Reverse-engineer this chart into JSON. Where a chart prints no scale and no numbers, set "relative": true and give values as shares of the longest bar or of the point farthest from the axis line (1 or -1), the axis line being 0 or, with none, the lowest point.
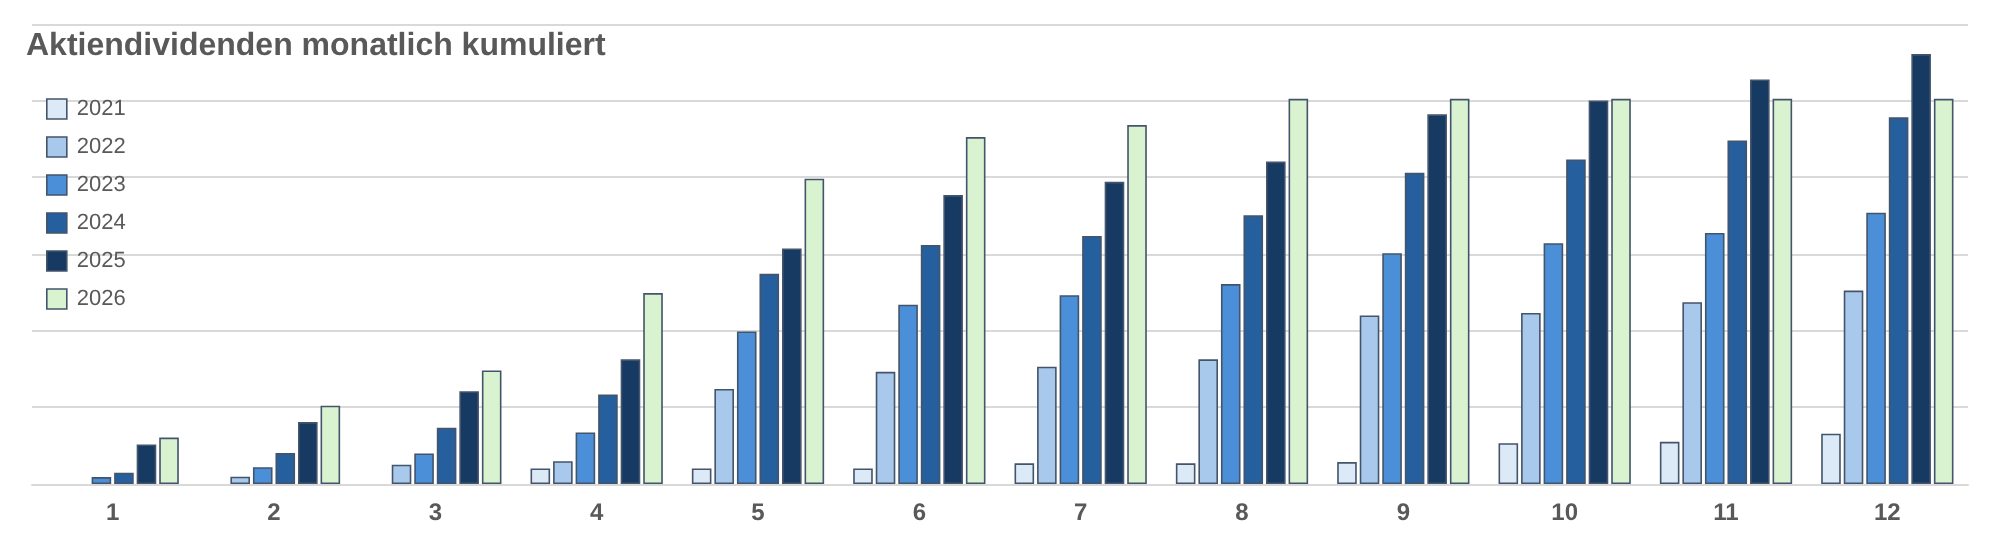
{
  "chart_data": {
    "type": "bar",
    "title": "Aktiendividenden monatlich kumuliert",
    "relative": true,
    "grid": "y",
    "legend": "top left",
    "categories": [
      "1",
      "2",
      "3",
      "4",
      "5",
      "6",
      "7",
      "8",
      "9",
      "10",
      "11",
      "12"
    ],
    "series": [
      {
        "name": "2021",
        "color": "#dce9f7",
        "values": [
          null,
          null,
          null,
          0.036,
          0.036,
          0.036,
          0.048,
          0.048,
          0.051,
          0.095,
          0.098,
          0.117
        ]
      },
      {
        "name": "2022",
        "color": "#a9c9ec",
        "values": [
          null,
          0.017,
          0.045,
          0.053,
          0.221,
          0.261,
          0.273,
          0.29,
          0.392,
          0.398,
          0.423,
          0.45
        ]
      },
      {
        "name": "2023",
        "color": "#4a8fd8",
        "values": [
          0.016,
          0.039,
          0.071,
          0.12,
          0.355,
          0.417,
          0.439,
          0.465,
          0.537,
          0.56,
          0.584,
          0.631
        ]
      },
      {
        "name": "2024",
        "color": "#255f9e",
        "values": [
          0.026,
          0.072,
          0.131,
          0.208,
          0.489,
          0.556,
          0.577,
          0.625,
          0.724,
          0.755,
          0.799,
          0.853
        ]
      },
      {
        "name": "2025",
        "color": "#173a63",
        "values": [
          0.092,
          0.144,
          0.216,
          0.29,
          0.548,
          0.672,
          0.703,
          0.75,
          0.86,
          0.892,
          0.941,
          1
        ]
      },
      {
        "name": "2026",
        "color": "#d9f2d0",
        "values": [
          0.108,
          0.182,
          0.264,
          0.444,
          0.71,
          0.807,
          0.835,
          0.896,
          0.896,
          0.896,
          0.896,
          0.896
        ]
      }
    ]
  }
}
